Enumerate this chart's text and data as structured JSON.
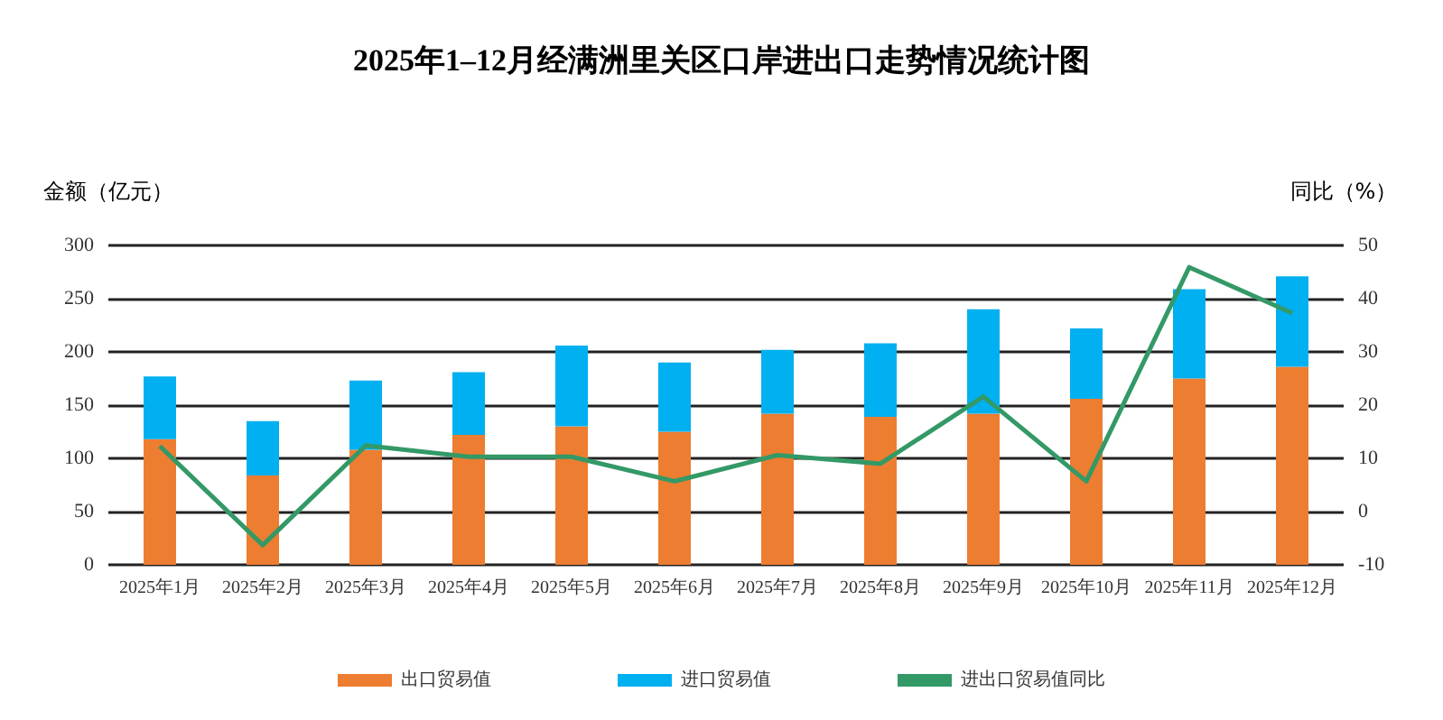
{
  "chart_data": {
    "type": "bar",
    "title": "2025年1–12月经满洲里关区口岸进出口走势情况统计图",
    "ylabel": "金额（亿元）",
    "y2label": "同比（%）",
    "categories": [
      "2025年1月",
      "2025年2月",
      "2025年3月",
      "2025年4月",
      "2025年5月",
      "2025年6月",
      "2025年7月",
      "2025年8月",
      "2025年9月",
      "2025年10月",
      "2025年11月",
      "2025年12月"
    ],
    "stacked": true,
    "series": [
      {
        "name": "出口贸易值",
        "color": "#ed7d31",
        "values": [
          118,
          84,
          108,
          122,
          130,
          125,
          142,
          139,
          142,
          156,
          175,
          186
        ]
      },
      {
        "name": "进口贸易值",
        "color": "#00b0f0",
        "values": [
          59,
          51,
          65,
          59,
          76,
          65,
          60,
          69,
          98,
          66,
          84,
          85
        ]
      },
      {
        "name": "进出口贸易值同比",
        "type": "line",
        "axis": "y2",
        "color": "#339966",
        "values": [
          12.3,
          -6.3,
          12.4,
          10.3,
          10.3,
          5.7,
          10.6,
          9.0,
          21.6,
          5.7,
          45.9,
          37.3
        ]
      }
    ],
    "ylim": [
      0,
      300
    ],
    "yticks": [
      0,
      50,
      100,
      150,
      200,
      250,
      300
    ],
    "y2lim": [
      -10,
      50
    ],
    "y2ticks": [
      -10,
      0,
      10,
      20,
      30,
      40,
      50
    ],
    "grid": "y",
    "legend": "bottom",
    "marker": "none",
    "line_style": "solid"
  }
}
